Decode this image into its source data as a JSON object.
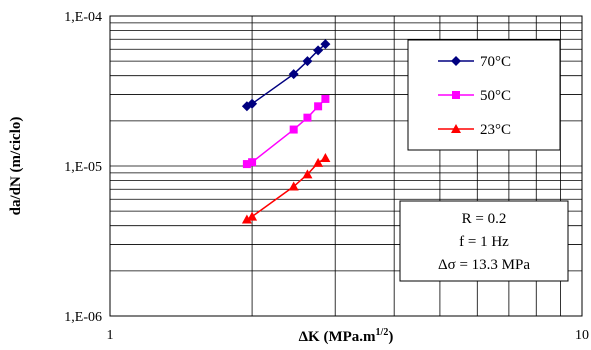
{
  "chart_data": {
    "type": "line",
    "title": "",
    "xlabel": "ΔK (MPa.m",
    "xlabel_sup": "1/2",
    "xlabel_end": ")",
    "ylabel": "da/dN (m/ciclo)",
    "xscale": "log",
    "yscale": "log",
    "xlim": [
      1,
      10
    ],
    "ylim": [
      1e-06,
      0.0001
    ],
    "x_tick_labels": [
      "1",
      "10"
    ],
    "y_tick_labels": [
      "1,E-06",
      "1,E-05",
      "1,E-04"
    ],
    "grid": true,
    "legend_position": "top-right",
    "series": [
      {
        "name": "70°C",
        "color": "#000080",
        "marker": "diamond",
        "x": [
          1.95,
          2.0,
          2.45,
          2.62,
          2.76,
          2.86
        ],
        "y": [
          2.5e-05,
          2.6e-05,
          4.1e-05,
          5e-05,
          5.9e-05,
          6.5e-05
        ]
      },
      {
        "name": "50°C",
        "color": "#ff00ff",
        "marker": "square",
        "x": [
          1.95,
          2.0,
          2.45,
          2.62,
          2.76,
          2.86
        ],
        "y": [
          1.03e-05,
          1.06e-05,
          1.75e-05,
          2.1e-05,
          2.5e-05,
          2.8e-05
        ]
      },
      {
        "name": "23°C",
        "color": "#ff0000",
        "marker": "triangle",
        "x": [
          1.95,
          2.0,
          2.45,
          2.62,
          2.76,
          2.86
        ],
        "y": [
          4.4e-06,
          4.6e-06,
          7.3e-06,
          8.8e-06,
          1.05e-05,
          1.13e-05
        ]
      }
    ],
    "annotations": [
      "R = 0.2",
      "f = 1 Hz",
      "Δσ = 13.3 MPa"
    ]
  }
}
